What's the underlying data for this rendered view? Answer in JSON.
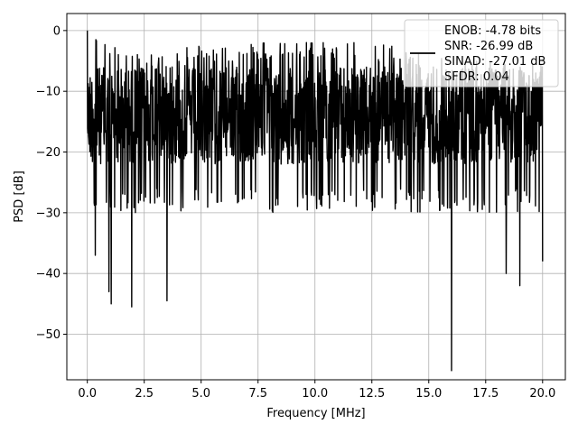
{
  "chart_data": {
    "type": "line",
    "title": "",
    "xlabel": "Frequency [MHz]",
    "ylabel": "PSD [dB]",
    "xlim": [
      -0.9,
      21.0
    ],
    "ylim": [
      -57.5,
      2.8
    ],
    "xticks": [
      0.0,
      2.5,
      5.0,
      7.5,
      10.0,
      12.5,
      15.0,
      17.5,
      20.0
    ],
    "xtick_labels": [
      "0.0",
      "2.5",
      "5.0",
      "7.5",
      "10.0",
      "12.5",
      "15.0",
      "17.5",
      "20.0"
    ],
    "yticks": [
      0,
      -10,
      -20,
      -30,
      -40,
      -50
    ],
    "ytick_labels": [
      "0",
      "−10",
      "−20",
      "−30",
      "−40",
      "−50"
    ],
    "grid": true,
    "legend": {
      "placement": "top-right",
      "entries": [
        "ENOB: -4.78 bits",
        "SNR: -26.99 dB",
        "SINAD: -27.01 dB",
        "SFDR: 0.04"
      ]
    },
    "series": [
      {
        "color": "#000000",
        "x_range": [
          0.0,
          20.0
        ],
        "upper_envelope_db": [
          {
            "x": 0.0,
            "y": 0.0
          },
          {
            "x": 2.0,
            "y": -4.0
          },
          {
            "x": 5.0,
            "y": -2.5
          },
          {
            "x": 10.0,
            "y": -1.5
          },
          {
            "x": 14.0,
            "y": -2.5
          },
          {
            "x": 17.5,
            "y": -5.0
          },
          {
            "x": 20.0,
            "y": -5.0
          }
        ],
        "typical_floor_db": -28.0,
        "notable_dips": [
          {
            "x": 0.35,
            "y": -37.0
          },
          {
            "x": 0.95,
            "y": -43.0
          },
          {
            "x": 1.05,
            "y": -45.0
          },
          {
            "x": 1.95,
            "y": -45.5
          },
          {
            "x": 3.5,
            "y": -44.5
          },
          {
            "x": 16.0,
            "y": -56.0
          },
          {
            "x": 18.4,
            "y": -40.0
          },
          {
            "x": 19.0,
            "y": -42.0
          },
          {
            "x": 20.0,
            "y": -38.0
          }
        ]
      }
    ]
  }
}
